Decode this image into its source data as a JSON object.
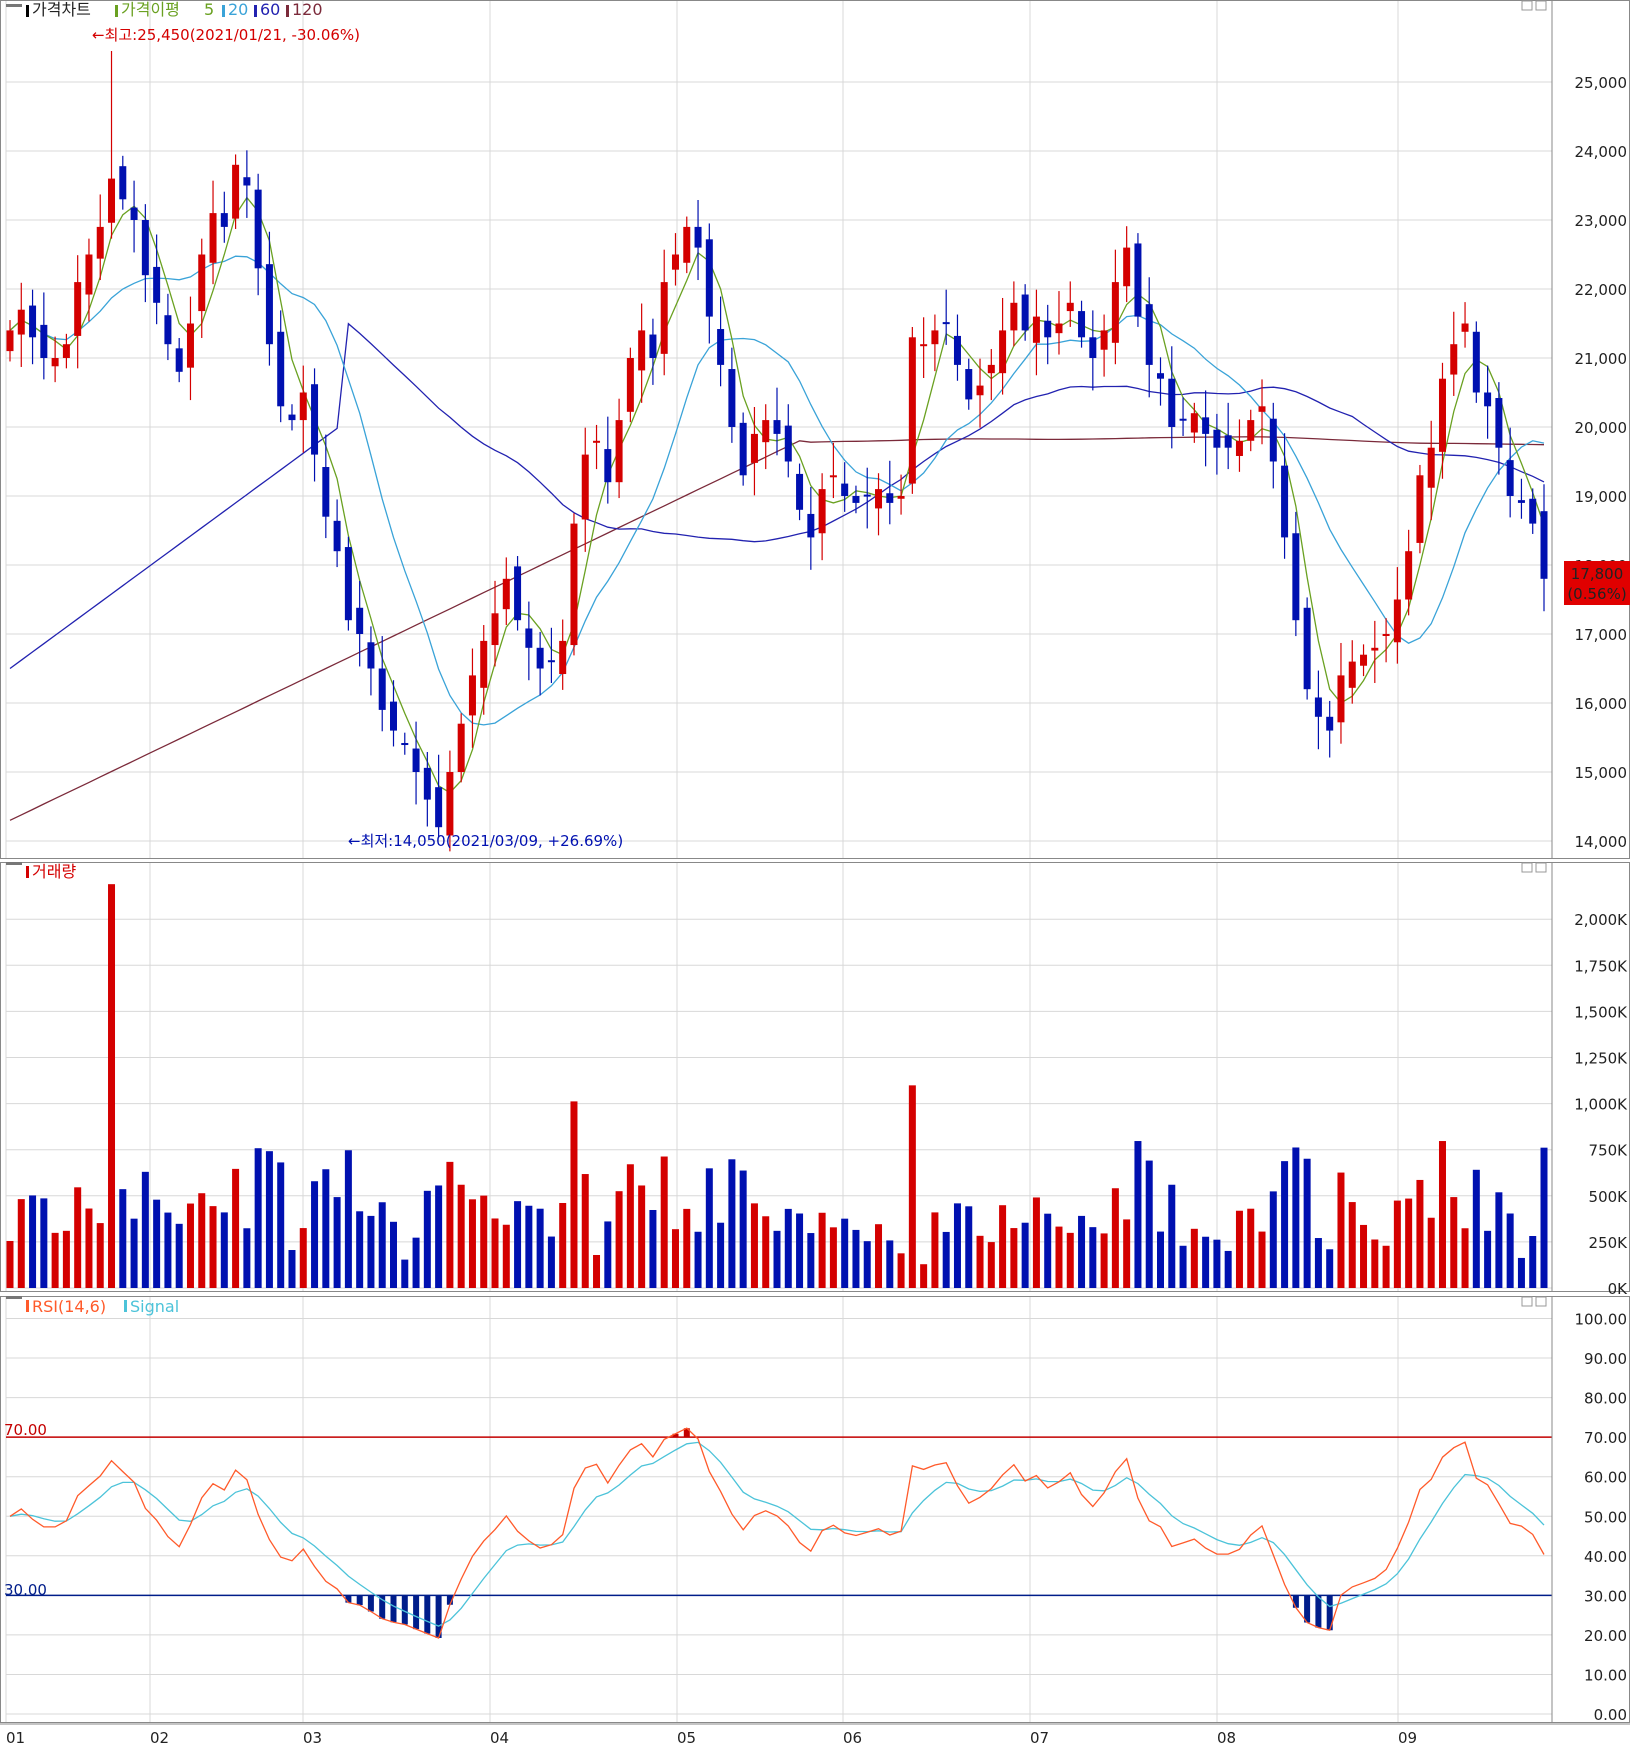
{
  "colors": {
    "up": "#d40000",
    "down": "#0010b0",
    "ma5": "#6aa121",
    "ma20": "#3aa3d8",
    "ma60": "#2222b0",
    "ma120": "#7b2a3a",
    "rsi": "#ff5a2a",
    "signal": "#4cc3d9",
    "overbought": "#c40000",
    "oversold": "#001d8a",
    "grid": "#d8d8d8",
    "price_box": "#e00000"
  },
  "legend": {
    "price_chart": "가격차트",
    "ma_title": "가격이평",
    "ma_periods": [
      "5",
      "20",
      "60",
      "120"
    ],
    "volume": "거래량",
    "rsi": "RSI(14,6)",
    "signal": "Signal"
  },
  "annotations": {
    "high": "←최고:25,450(2021/01/21, -30.06%)",
    "low": "←최저:14,050(2021/03/09, +26.69%)",
    "current_price": "17,800",
    "current_change": "(0.56%)",
    "rsi_upper_label": "70.00",
    "rsi_lower_label": "30.00"
  },
  "chart_data": [
    {
      "type": "candlestick",
      "title": "가격차트",
      "y_ticks": [
        "25,000",
        "24,000",
        "23,000",
        "22,000",
        "21,000",
        "20,000",
        "19,000",
        "18,000",
        "17,000",
        "16,000",
        "15,000",
        "14,000"
      ],
      "ylim": [
        13800,
        25900
      ],
      "x_month_labels": [
        "01",
        "02",
        "03",
        "04",
        "05",
        "06",
        "07",
        "08",
        "09"
      ],
      "close_series": [
        21400,
        21700,
        21300,
        21000,
        21000,
        21200,
        22100,
        22500,
        22900,
        23600,
        23300,
        23000,
        22200,
        21800,
        21200,
        20800,
        21500,
        22500,
        23100,
        22900,
        23800,
        23500,
        22300,
        21200,
        20300,
        20100,
        20500,
        19600,
        18700,
        18200,
        17200,
        17000,
        16500,
        15900,
        15600,
        15400,
        15000,
        14600,
        14200,
        15000,
        15700,
        16400,
        16900,
        17300,
        17800,
        17200,
        16800,
        16500,
        16600,
        16900,
        18600,
        19600,
        19800,
        19200,
        20100,
        21000,
        21400,
        21000,
        22100,
        22500,
        22900,
        22600,
        21600,
        20900,
        20000,
        19300,
        19900,
        20100,
        19900,
        19500,
        18800,
        18400,
        19100,
        19300,
        19000,
        18900,
        19000,
        19100,
        18900,
        19000,
        21300,
        21200,
        21400,
        21500,
        20900,
        20400,
        20600,
        20900,
        21400,
        21800,
        21400,
        21600,
        21300,
        21500,
        21800,
        21300,
        21000,
        21400,
        22100,
        22600,
        21600,
        20900,
        20700,
        20000,
        20100,
        20200,
        19900,
        19700,
        19700,
        19800,
        20100,
        20300,
        19500,
        18400,
        17200,
        16200,
        15800,
        15600,
        16400,
        16600,
        16700,
        16800,
        17000,
        17500,
        18200,
        19300,
        19700,
        20700,
        21200,
        21500,
        20500,
        20300,
        19700,
        19000,
        18900,
        18600,
        17800
      ],
      "high": 25450,
      "low": 14050
    },
    {
      "type": "bar",
      "title": "거래량",
      "y_ticks": [
        "2,000K",
        "1,750K",
        "1,500K",
        "1,250K",
        "1,000K",
        "750K",
        "500K",
        "250K",
        "0K"
      ],
      "ylim": [
        0,
        2200
      ],
      "unit": "K"
    },
    {
      "type": "line",
      "title": "RSI(14,6)",
      "series": [
        {
          "name": "RSI(14,6)"
        },
        {
          "name": "Signal"
        }
      ],
      "y_ticks": [
        "100.00",
        "90.00",
        "80.00",
        "70.00",
        "60.00",
        "50.00",
        "40.00",
        "30.00",
        "20.00",
        "10.00",
        "0.00"
      ],
      "ylim": [
        0,
        100
      ],
      "levels": [
        70,
        30
      ]
    }
  ]
}
